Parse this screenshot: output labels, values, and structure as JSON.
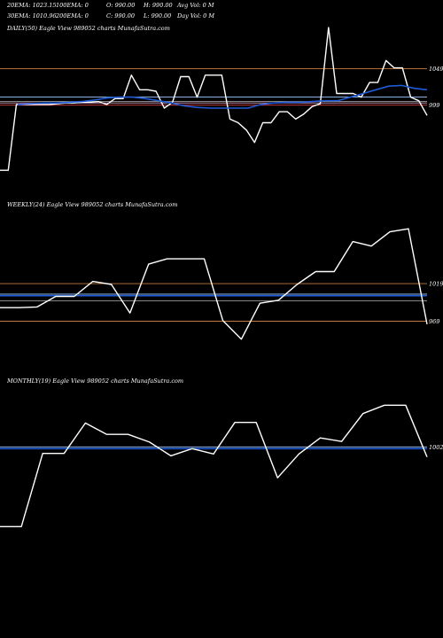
{
  "header": {
    "row1": [
      {
        "label": "20EMA: 1023.15"
      },
      {
        "label": "100EMA: 0"
      },
      {
        "label": "O: 990.00"
      },
      {
        "label": "H: 990.00"
      },
      {
        "label": "Avg Vol: 0  M"
      }
    ],
    "row2": [
      {
        "label": "30EMA: 1010.96"
      },
      {
        "label": "200EMA: 0"
      },
      {
        "label": "C: 990.00"
      },
      {
        "label": "L: 990.00"
      },
      {
        "label": "Day Vol: 0  M"
      }
    ]
  },
  "colors": {
    "background": "#000000",
    "price": "#ffffff",
    "ema_blue": "#1f5bd6",
    "level_orange": "#c97a3a",
    "level_red": "#d94040",
    "level_gray": "#9a9a9a",
    "level_pink": "#e0a0c0",
    "level_light_blue": "#9ec8ff"
  },
  "chart_data": [
    {
      "type": "line",
      "title": "DAILY(50) Eagle  View  989052  charts MunafaSutra.com",
      "right_labels": [
        "1049",
        "999"
      ],
      "ylim": [
        880,
        1110
      ],
      "levels": [
        {
          "value": 1049,
          "color": "#c97a3a"
        },
        {
          "value": 1010,
          "color": "#9ec8ff"
        },
        {
          "value": 1004,
          "color": "#9a9a9a"
        },
        {
          "value": 1002,
          "color": "#e0a0c0"
        },
        {
          "value": 999,
          "color": "#d94040"
        }
      ],
      "series": [
        {
          "role": "price",
          "color": "#ffffff",
          "values": [
            910,
            910,
            1000,
            1000,
            1000,
            1000,
            1000,
            1001,
            1002,
            1002,
            1003,
            1003,
            1004,
            1000,
            1008,
            1008,
            1040,
            1020,
            1020,
            1018,
            995,
            1003,
            1038,
            1038,
            1010,
            1040,
            1040,
            1040,
            980,
            975,
            965,
            948,
            975,
            975,
            990,
            990,
            980,
            987,
            997,
            1001,
            1105,
            1015,
            1015,
            1015,
            1010,
            1030,
            1030,
            1060,
            1050,
            1050,
            1010,
            1005,
            985
          ]
        },
        {
          "role": "ema",
          "color": "#1f5bd6",
          "values": [
            1000,
            1001,
            1002,
            1002,
            1003,
            1004,
            1006,
            1009,
            1010,
            1010,
            1008,
            1005,
            1002,
            998,
            996,
            995,
            995,
            995,
            995,
            1000,
            1002,
            1003,
            1003,
            1004,
            1005,
            1005,
            1010,
            1015,
            1020,
            1025,
            1026,
            1022,
            1020
          ]
        }
      ]
    },
    {
      "type": "line",
      "title": "WEEKLY(24) Eagle  View  989052  charts MunafaSutra.com",
      "right_labels": [
        "1019",
        "969"
      ],
      "ylim": [
        900,
        1130
      ],
      "levels": [
        {
          "value": 1019,
          "color": "#c97a3a"
        },
        {
          "value": 1005,
          "color": "#9ec8ff"
        },
        {
          "value": 1003,
          "color": "#1f5bd6"
        },
        {
          "value": 996,
          "color": "#9a9a9a"
        },
        {
          "value": 969,
          "color": "#c97a3a"
        }
      ],
      "series": [
        {
          "role": "price",
          "color": "#ffffff",
          "values": [
            987,
            987,
            988,
            1002,
            1002,
            1022,
            1018,
            980,
            1045,
            1052,
            1052,
            1052,
            970,
            945,
            993,
            997,
            1018,
            1035,
            1035,
            1075,
            1069,
            1088,
            1092,
            965
          ]
        }
      ]
    },
    {
      "type": "line",
      "title": "MONTHLY(19) Eagle  View  989052  charts MunafaSutra.com",
      "right_labels": [
        "1002"
      ],
      "ylim": [
        800,
        1120
      ],
      "levels": [
        {
          "value": 1002,
          "color": "#9ec8ff"
        },
        {
          "value": 999,
          "color": "#1f5bd6"
        }
      ],
      "series": [
        {
          "role": "price",
          "color": "#ffffff",
          "values": [
            868,
            868,
            991,
            991,
            1042,
            1023,
            1023,
            1010,
            987,
            999,
            990,
            1043,
            1043,
            950,
            990,
            1017,
            1011,
            1058,
            1072,
            1072,
            985
          ]
        }
      ]
    }
  ]
}
